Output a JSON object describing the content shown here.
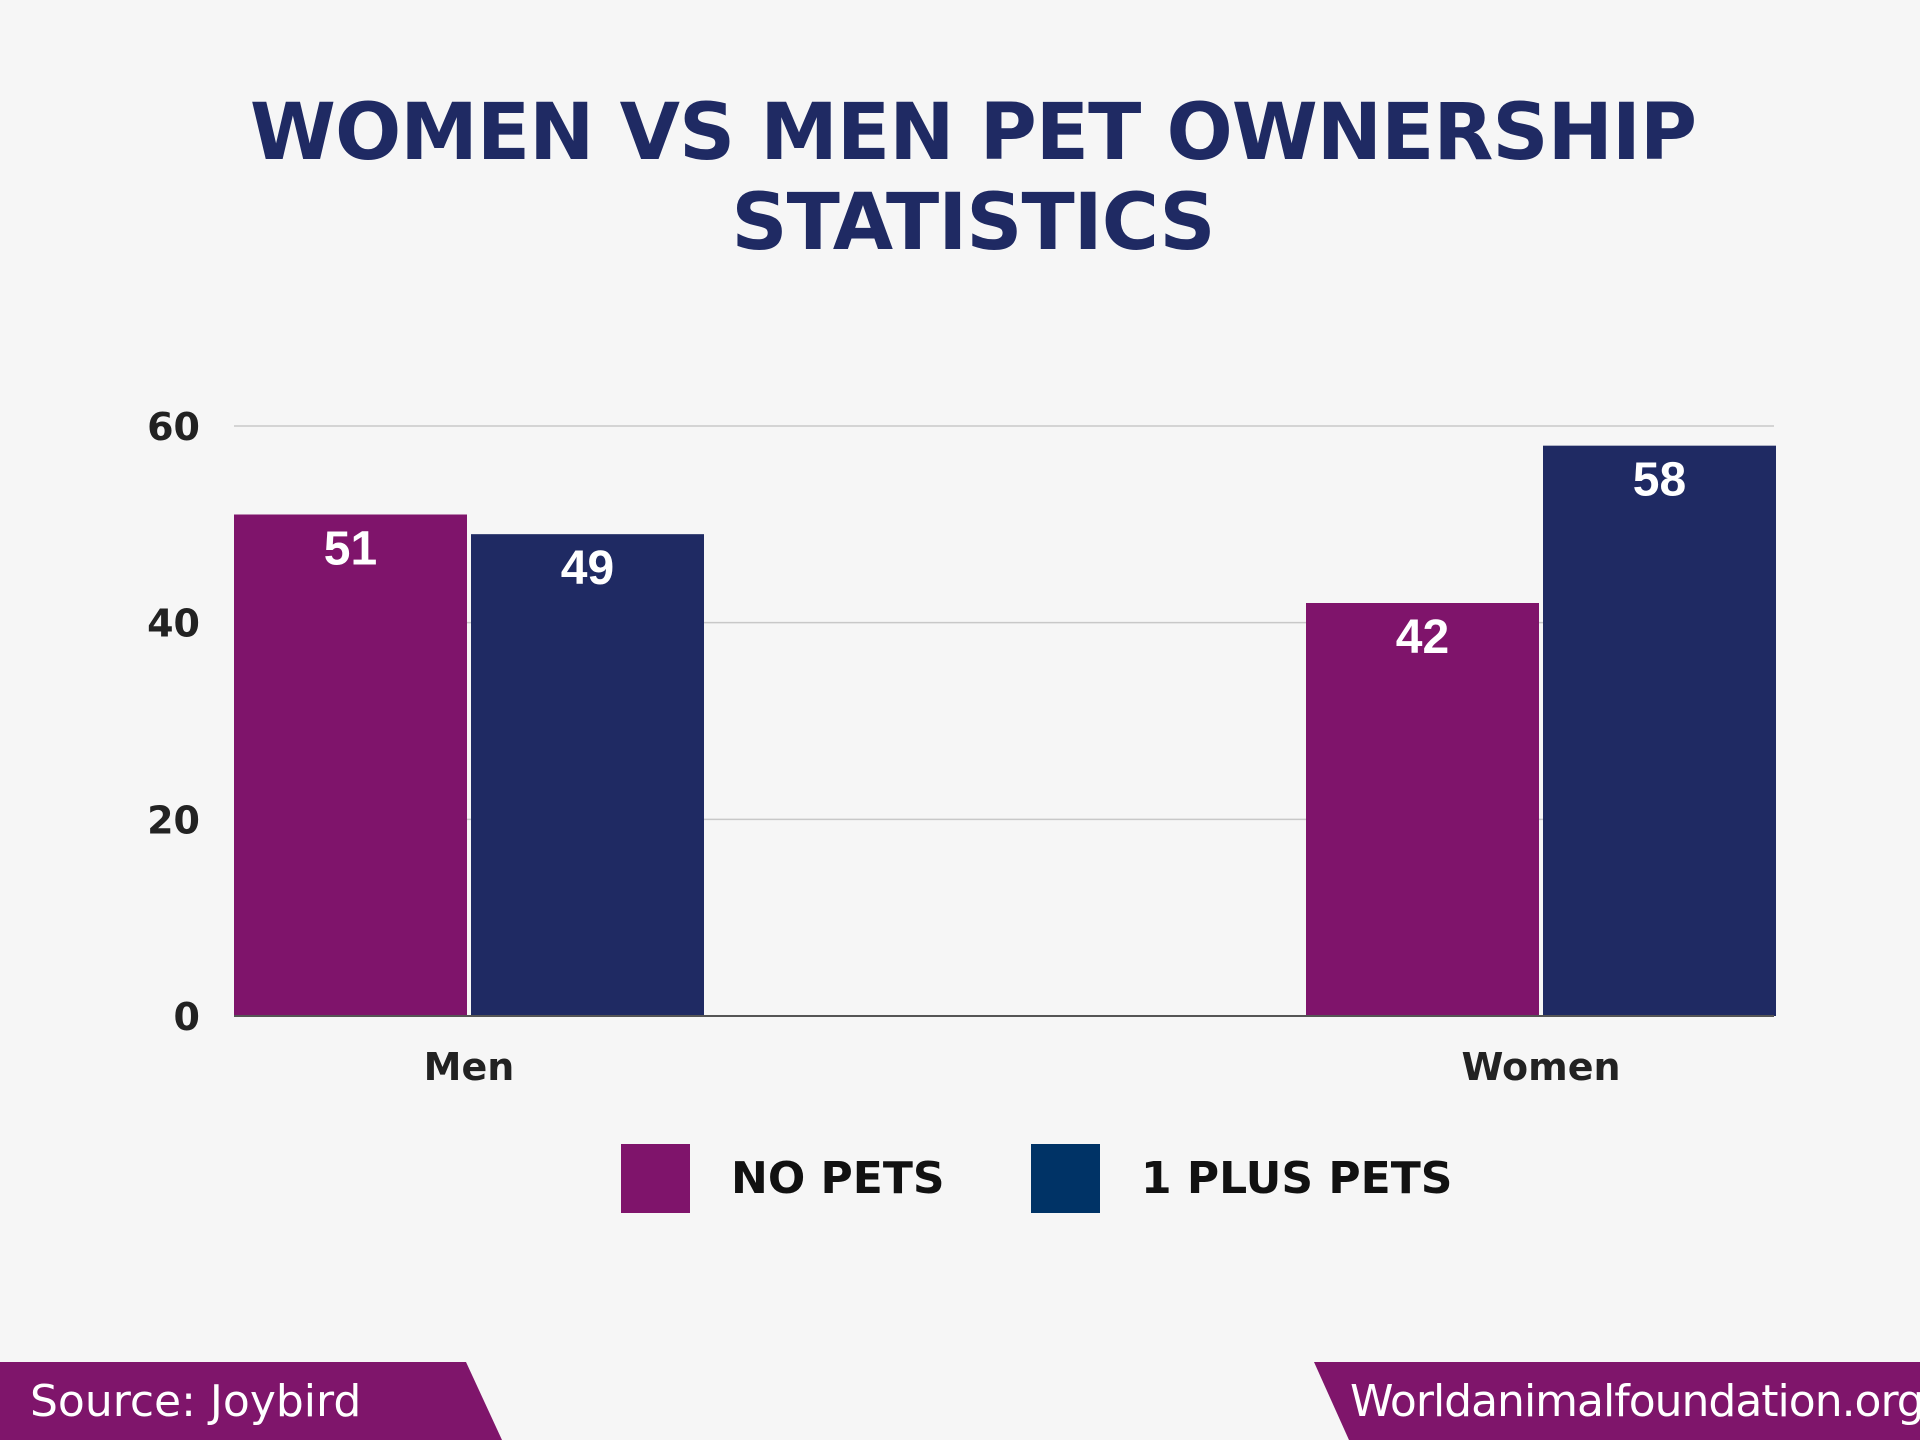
{
  "chart_data": {
    "type": "bar",
    "title": "WOMEN VS MEN PET OWNERSHIP STATISTICS",
    "categories": [
      "Men",
      "Women"
    ],
    "series": [
      {
        "name": "NO PETS",
        "values": [
          51,
          42
        ],
        "color": "#7f146b"
      },
      {
        "name": "1 PLUS PETS",
        "values": [
          49,
          58
        ],
        "color": "#1f2a63"
      }
    ],
    "legend_colors": [
      "#7f146b",
      "#003366"
    ],
    "yticks": [
      0,
      20,
      40,
      60
    ],
    "ylim": [
      0,
      60
    ],
    "grid": true,
    "legend": "bottom",
    "xlabel": "",
    "ylabel": ""
  },
  "footer": {
    "source": "Source: Joybird",
    "site": "Worldanimalfoundation.org"
  }
}
